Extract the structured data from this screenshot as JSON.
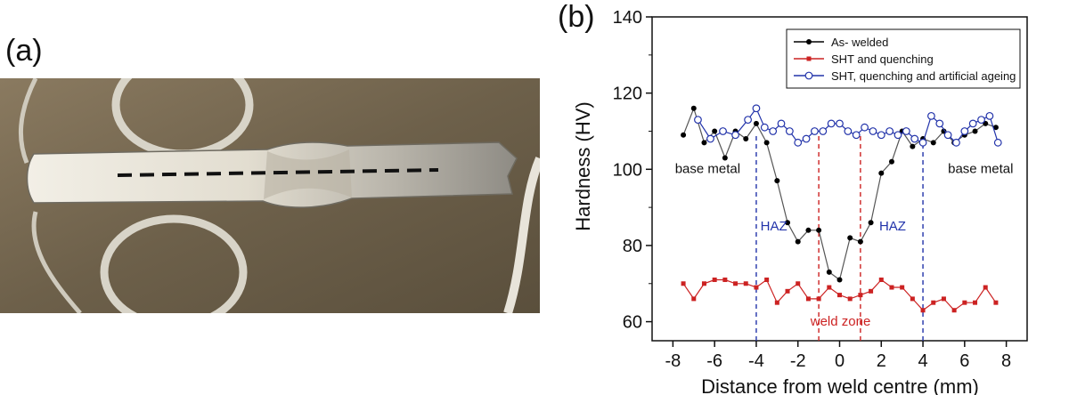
{
  "panels": {
    "a": "(a)",
    "b": "(b)"
  },
  "chart_data": {
    "type": "line",
    "xlabel": "Distance from weld centre (mm)",
    "ylabel": "Hardness (HV)",
    "xlim": [
      -9,
      9
    ],
    "ylim": [
      55,
      140
    ],
    "xticks": [
      -8,
      -6,
      -4,
      -2,
      0,
      2,
      4,
      6,
      8
    ],
    "yticks": [
      60,
      80,
      100,
      120,
      140
    ],
    "grid": false,
    "legend_position": "top-right",
    "series": [
      {
        "name": "As- welded",
        "color": "#000000",
        "marker": "filled-circle",
        "x": [
          -7.5,
          -7,
          -6.5,
          -6,
          -5.5,
          -5,
          -4.5,
          -4,
          -3.5,
          -3,
          -2.5,
          -2,
          -1.5,
          -1,
          -0.5,
          0,
          0.5,
          1,
          1.5,
          2,
          2.5,
          3,
          3.5,
          4,
          4.5,
          5,
          5.5,
          6,
          6.5,
          7,
          7.5
        ],
        "y": [
          109,
          116,
          107,
          110,
          103,
          110,
          108,
          112,
          107,
          97,
          86,
          81,
          84,
          84,
          73,
          71,
          82,
          81,
          86,
          99,
          102,
          110,
          106,
          108,
          107,
          110,
          107,
          109,
          110,
          112,
          111
        ]
      },
      {
        "name": "SHT and quenching",
        "color": "#cc2222",
        "marker": "filled-square",
        "x": [
          -7.5,
          -7,
          -6.5,
          -6,
          -5.5,
          -5,
          -4.5,
          -4,
          -3.5,
          -3,
          -2.5,
          -2,
          -1.5,
          -1,
          -0.5,
          0,
          0.5,
          1,
          1.5,
          2,
          2.5,
          3,
          3.5,
          4,
          4.5,
          5,
          5.5,
          6,
          6.5,
          7,
          7.5
        ],
        "y": [
          70,
          66,
          70,
          71,
          71,
          70,
          70,
          69,
          71,
          65,
          68,
          70,
          66,
          66,
          69,
          67,
          66,
          67,
          68,
          71,
          69,
          69,
          66,
          63,
          65,
          66,
          63,
          65,
          65,
          69,
          65
        ]
      },
      {
        "name": "SHT, quenching and artificial ageing",
        "color": "#2233aa",
        "marker": "open-circle",
        "x": [
          -6.8,
          -6.2,
          -5.6,
          -5,
          -4.4,
          -4,
          -3.6,
          -3.2,
          -2.8,
          -2.4,
          -2,
          -1.6,
          -1.2,
          -0.8,
          -0.4,
          0,
          0.4,
          0.8,
          1.2,
          1.6,
          2,
          2.4,
          2.8,
          3.2,
          3.6,
          4,
          4.4,
          4.8,
          5.2,
          5.6,
          6,
          6.4,
          6.8,
          7.2,
          7.6
        ],
        "y": [
          113,
          108,
          110,
          109,
          113,
          116,
          111,
          110,
          112,
          110,
          107,
          108,
          110,
          110,
          112,
          112,
          110,
          109,
          111,
          110,
          109,
          110,
          109,
          110,
          108,
          107,
          114,
          112,
          109,
          107,
          110,
          112,
          113,
          114,
          107
        ]
      }
    ],
    "annotations": [
      {
        "text": "base metal",
        "color": "#111111",
        "x": -7.9,
        "y": 99
      },
      {
        "text": "base metal",
        "color": "#111111",
        "x": 5.2,
        "y": 99
      },
      {
        "text": "HAZ",
        "color": "#2233aa",
        "x": -3.8,
        "y": 84
      },
      {
        "text": "HAZ",
        "color": "#2233aa",
        "x": 1.9,
        "y": 84
      },
      {
        "text": "weld zone",
        "color": "#cc2222",
        "x": -1.4,
        "y": 59
      }
    ],
    "vlines": [
      {
        "x": -4,
        "color": "#2233aa"
      },
      {
        "x": 4,
        "color": "#2233aa"
      },
      {
        "x": -1,
        "color": "#cc2222"
      },
      {
        "x": 1,
        "color": "#cc2222"
      }
    ]
  }
}
